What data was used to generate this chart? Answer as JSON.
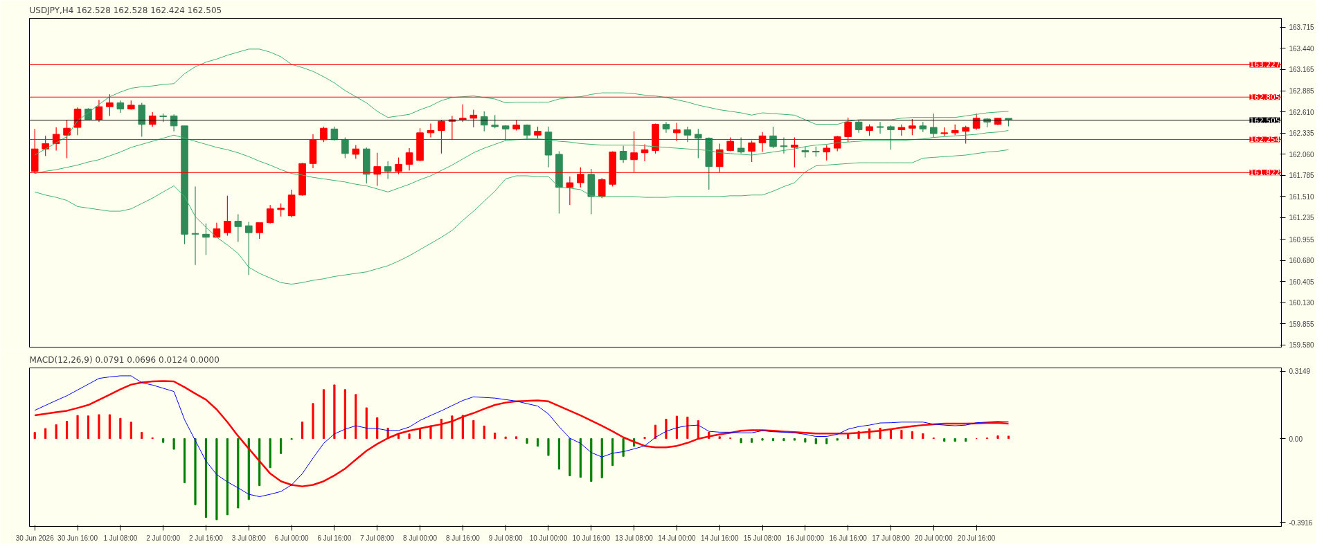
{
  "chart_data": [
    {
      "type": "candlestick",
      "title": "USDJPY,H4  162.528 162.528 162.424 162.505",
      "categories": [
        null,
        null,
        null,
        null,
        null,
        null,
        null,
        null,
        null,
        null,
        null,
        null,
        null,
        null,
        null,
        null,
        null,
        null,
        null,
        null,
        null,
        null,
        null,
        null,
        null,
        null,
        null,
        null,
        null,
        null,
        null,
        null,
        null,
        null,
        null,
        null,
        null,
        null,
        null,
        null,
        null,
        null,
        null,
        null,
        null,
        null,
        null,
        null,
        null,
        null,
        null,
        null,
        null,
        null,
        null,
        null,
        null,
        null,
        null,
        null,
        null,
        null,
        null,
        null,
        null,
        null,
        null,
        null,
        null,
        null,
        null,
        null,
        null,
        null,
        null,
        null,
        null,
        null,
        null,
        null,
        null,
        null,
        null,
        null,
        null,
        null,
        null,
        null,
        null,
        null,
        null,
        null,
        null,
        null,
        null,
        null,
        null,
        null,
        null,
        null,
        null,
        null,
        null,
        null,
        null,
        null,
        null,
        null,
        null,
        null,
        null,
        null,
        null,
        null,
        null,
        null,
        null
      ],
      "ohlc": [
        [
          161.84,
          162.39,
          161.81,
          162.13
        ],
        [
          162.13,
          162.3,
          162.04,
          162.2
        ],
        [
          162.2,
          162.41,
          162.11,
          162.32
        ],
        [
          162.31,
          162.51,
          162.01,
          162.4
        ],
        [
          162.41,
          162.67,
          162.31,
          162.65
        ],
        [
          162.65,
          162.66,
          162.51,
          162.51
        ],
        [
          162.51,
          162.77,
          162.48,
          162.68
        ],
        [
          162.68,
          162.84,
          162.56,
          162.73
        ],
        [
          162.73,
          162.76,
          162.6,
          162.65
        ],
        [
          162.65,
          162.76,
          162.64,
          162.7
        ],
        [
          162.7,
          162.73,
          162.29,
          162.45
        ],
        [
          162.45,
          162.61,
          162.42,
          162.56
        ],
        [
          162.56,
          162.59,
          162.48,
          162.55
        ],
        [
          162.56,
          162.58,
          162.36,
          162.43
        ],
        [
          162.43,
          162.43,
          160.89,
          161.02
        ],
        [
          161.03,
          161.64,
          160.62,
          161.02
        ],
        [
          161.02,
          161.16,
          160.75,
          160.98
        ],
        [
          160.98,
          161.17,
          160.98,
          161.09
        ],
        [
          161.04,
          161.52,
          161.0,
          161.19
        ],
        [
          161.19,
          161.28,
          160.92,
          161.12
        ],
        [
          161.13,
          161.18,
          160.49,
          161.04
        ],
        [
          161.04,
          161.17,
          160.96,
          161.17
        ],
        [
          161.17,
          161.4,
          161.16,
          161.35
        ],
        [
          161.34,
          161.42,
          161.25,
          161.36
        ],
        [
          161.26,
          161.6,
          161.24,
          161.53
        ],
        [
          161.53,
          161.95,
          161.52,
          161.94
        ],
        [
          161.94,
          162.32,
          161.88,
          162.25
        ],
        [
          162.25,
          162.42,
          162.22,
          162.4
        ],
        [
          162.39,
          162.42,
          162.24,
          162.25
        ],
        [
          162.25,
          162.28,
          162.01,
          162.07
        ],
        [
          162.06,
          162.18,
          162.0,
          162.13
        ],
        [
          162.13,
          162.15,
          161.68,
          161.8
        ],
        [
          161.8,
          162.08,
          161.65,
          161.9
        ],
        [
          161.9,
          161.97,
          161.74,
          161.84
        ],
        [
          161.84,
          162.02,
          161.8,
          161.93
        ],
        [
          161.93,
          162.14,
          161.85,
          162.08
        ],
        [
          161.98,
          162.4,
          161.97,
          162.34
        ],
        [
          162.34,
          162.46,
          162.28,
          162.37
        ],
        [
          162.37,
          162.5,
          162.07,
          162.49
        ],
        [
          162.49,
          162.56,
          162.25,
          162.51
        ],
        [
          162.51,
          162.71,
          162.48,
          162.53
        ],
        [
          162.53,
          162.64,
          162.41,
          162.57
        ],
        [
          162.55,
          162.62,
          162.36,
          162.44
        ],
        [
          162.44,
          162.57,
          162.4,
          162.42
        ],
        [
          162.43,
          162.44,
          162.24,
          162.39
        ],
        [
          162.39,
          162.51,
          162.37,
          162.44
        ],
        [
          162.44,
          162.45,
          162.26,
          162.31
        ],
        [
          162.31,
          162.42,
          162.27,
          162.36
        ],
        [
          162.35,
          162.42,
          161.89,
          162.05
        ],
        [
          162.06,
          162.1,
          161.29,
          161.63
        ],
        [
          161.63,
          161.77,
          161.4,
          161.69
        ],
        [
          161.69,
          161.89,
          161.63,
          161.8
        ],
        [
          161.8,
          161.87,
          161.28,
          161.51
        ],
        [
          161.51,
          161.75,
          161.49,
          161.73
        ],
        [
          161.67,
          162.1,
          161.64,
          162.09
        ],
        [
          162.1,
          162.17,
          161.95,
          161.99
        ],
        [
          161.99,
          162.36,
          161.83,
          162.08
        ],
        [
          162.08,
          162.19,
          161.97,
          162.12
        ],
        [
          162.11,
          162.46,
          162.07,
          162.45
        ],
        [
          162.45,
          162.48,
          162.34,
          162.39
        ],
        [
          162.34,
          162.47,
          162.23,
          162.38
        ],
        [
          162.38,
          162.42,
          162.22,
          162.31
        ],
        [
          162.32,
          162.39,
          162.01,
          162.27
        ],
        [
          162.27,
          162.28,
          161.6,
          161.9
        ],
        [
          161.9,
          162.2,
          161.83,
          162.12
        ],
        [
          162.11,
          162.28,
          162.1,
          162.23
        ],
        [
          162.14,
          162.28,
          162.07,
          162.09
        ],
        [
          162.1,
          162.24,
          161.96,
          162.21
        ],
        [
          162.21,
          162.35,
          162.09,
          162.3
        ],
        [
          162.3,
          162.42,
          162.14,
          162.16
        ],
        [
          162.17,
          162.28,
          162.07,
          162.16
        ],
        [
          162.15,
          162.28,
          161.89,
          162.18
        ],
        [
          162.11,
          162.16,
          162.02,
          162.09
        ],
        [
          162.1,
          162.16,
          162.03,
          162.09
        ],
        [
          162.09,
          162.18,
          161.98,
          162.14
        ],
        [
          162.14,
          162.3,
          162.1,
          162.29
        ],
        [
          162.29,
          162.54,
          162.22,
          162.48
        ],
        [
          162.48,
          162.51,
          162.34,
          162.38
        ],
        [
          162.37,
          162.45,
          162.3,
          162.42
        ],
        [
          162.42,
          162.48,
          162.33,
          162.41
        ],
        [
          162.42,
          162.44,
          162.12,
          162.38
        ],
        [
          162.38,
          162.45,
          162.3,
          162.41
        ],
        [
          162.4,
          162.52,
          162.31,
          162.43
        ],
        [
          162.43,
          162.48,
          162.35,
          162.39
        ],
        [
          162.41,
          162.59,
          162.28,
          162.33
        ],
        [
          162.33,
          162.41,
          162.3,
          162.34
        ],
        [
          162.34,
          162.45,
          162.31,
          162.37
        ],
        [
          162.36,
          162.43,
          162.2,
          162.41
        ],
        [
          162.4,
          162.59,
          162.38,
          162.53
        ],
        [
          162.52,
          162.53,
          162.41,
          162.48
        ],
        [
          162.45,
          162.53,
          162.44,
          162.53
        ],
        [
          162.528,
          162.528,
          162.424,
          162.505
        ],
        null,
        null,
        null,
        null,
        null,
        null,
        null,
        null,
        null,
        null,
        null,
        null,
        null,
        null,
        null,
        null,
        null,
        null,
        null,
        null,
        null,
        null,
        null,
        null,
        null
      ],
      "colors": [
        "#ff0000",
        "#ff0000",
        "#ff0000",
        "#ff0000",
        "#ff0000",
        "#2e8b57",
        "#ff0000",
        "#ff0000",
        "#2e8b57",
        "#ff0000",
        "#2e8b57",
        "#ff0000",
        "#2e8b57",
        "#2e8b57",
        "#2e8b57",
        "#2e8b57",
        "#2e8b57",
        "#ff0000",
        "#ff0000",
        "#2e8b57",
        "#2e8b57",
        "#ff0000",
        "#ff0000",
        "#ff0000",
        "#ff0000",
        "#ff0000",
        "#ff0000",
        "#ff0000",
        "#2e8b57",
        "#2e8b57",
        "#ff0000",
        "#2e8b57",
        "#ff0000",
        "#2e8b57",
        "#ff0000",
        "#ff0000",
        "#ff0000",
        "#ff0000",
        "#ff0000",
        "#ff0000",
        "#ff0000",
        "#ff0000",
        "#2e8b57",
        "#2e8b57",
        "#2e8b57",
        "#ff0000",
        "#2e8b57",
        "#ff0000",
        "#2e8b57",
        "#2e8b57",
        "#ff0000",
        "#ff0000",
        "#2e8b57",
        "#ff0000",
        "#ff0000",
        "#2e8b57",
        "#ff0000",
        "#ff0000",
        "#ff0000",
        "#2e8b57",
        "#ff0000",
        "#2e8b57",
        "#2e8b57",
        "#2e8b57",
        "#ff0000",
        "#ff0000",
        "#2e8b57",
        "#ff0000",
        "#ff0000",
        "#2e8b57",
        "#2e8b57",
        "#ff0000",
        "#2e8b57",
        "#2e8b57",
        "#ff0000",
        "#ff0000",
        "#ff0000",
        "#2e8b57",
        "#ff0000",
        "#2e8b57",
        "#2e8b57",
        "#ff0000",
        "#ff0000",
        "#2e8b57",
        "#2e8b57",
        "#ff0000",
        "#ff0000",
        "#ff0000",
        "#ff0000",
        "#2e8b57",
        "#ff0000",
        "#2e8b57",
        null,
        null,
        null,
        null,
        null,
        null,
        null,
        null,
        null,
        null,
        null,
        null,
        null,
        null,
        null,
        null,
        null,
        null,
        null,
        null,
        null,
        null,
        null,
        null,
        null
      ],
      "series": [
        {
          "type": "line",
          "color": "#3cb371",
          "values": [
            162.05,
            162.13,
            162.21,
            162.29,
            162.5,
            162.6,
            162.71,
            162.81,
            162.87,
            162.92,
            162.94,
            162.95,
            162.97,
            162.98,
            163.11,
            163.2,
            163.26,
            163.3,
            163.35,
            163.39,
            163.43,
            163.43,
            163.39,
            163.33,
            163.23,
            163.19,
            163.14,
            163.07,
            162.99,
            162.89,
            162.81,
            162.73,
            162.62,
            162.54,
            162.56,
            162.58,
            162.64,
            162.69,
            162.76,
            162.8,
            162.81,
            162.82,
            162.8,
            162.78,
            162.73,
            162.74,
            162.74,
            162.74,
            162.74,
            162.78,
            162.8,
            162.81,
            162.84,
            162.86,
            162.86,
            162.86,
            162.85,
            162.83,
            162.82,
            162.8,
            162.77,
            162.74,
            162.7,
            162.67,
            162.64,
            162.62,
            162.6,
            162.57,
            162.6,
            162.59,
            162.58,
            162.57,
            162.51,
            162.45,
            162.45,
            162.45,
            162.49,
            162.51,
            162.51,
            162.51,
            162.51,
            162.53,
            162.54,
            162.54,
            162.54,
            162.54,
            162.54,
            162.56,
            162.58,
            162.6,
            162.61,
            162.62,
            null,
            null,
            null,
            null,
            null,
            null,
            null,
            null,
            null,
            null,
            null,
            null,
            null,
            null,
            null,
            null,
            null,
            null,
            null,
            null,
            null,
            null,
            null,
            null,
            null
          ]
        },
        {
          "type": "line",
          "color": "#3cb371",
          "values": [
            161.81,
            161.84,
            161.86,
            161.89,
            161.92,
            161.96,
            161.99,
            162.04,
            162.09,
            162.15,
            162.19,
            162.23,
            162.27,
            162.31,
            162.27,
            162.23,
            162.19,
            162.15,
            162.12,
            162.08,
            162.03,
            161.97,
            161.92,
            161.86,
            161.81,
            161.79,
            161.76,
            161.74,
            161.72,
            161.7,
            161.67,
            161.65,
            161.61,
            161.57,
            161.62,
            161.67,
            161.73,
            161.78,
            161.85,
            161.92,
            162.0,
            162.08,
            162.14,
            162.19,
            162.24,
            162.25,
            162.26,
            162.26,
            162.25,
            162.23,
            162.22,
            162.2,
            162.19,
            162.18,
            162.18,
            162.18,
            162.18,
            162.17,
            162.16,
            162.15,
            162.14,
            162.13,
            162.12,
            162.11,
            162.08,
            162.07,
            162.06,
            162.05,
            162.07,
            162.09,
            162.11,
            162.13,
            162.16,
            162.18,
            162.19,
            162.21,
            162.22,
            162.23,
            162.24,
            162.24,
            162.24,
            162.24,
            162.25,
            162.26,
            162.28,
            162.29,
            162.3,
            162.31,
            162.32,
            162.34,
            162.35,
            162.37,
            null,
            null,
            null,
            null,
            null,
            null,
            null,
            null,
            null,
            null,
            null,
            null,
            null,
            null,
            null,
            null,
            null,
            null,
            null,
            null,
            null,
            null,
            null,
            null,
            null
          ]
        },
        {
          "type": "line",
          "color": "#3cb371",
          "values": [
            161.57,
            161.53,
            161.5,
            161.46,
            161.38,
            161.36,
            161.34,
            161.32,
            161.32,
            161.35,
            161.42,
            161.49,
            161.57,
            161.65,
            161.51,
            161.25,
            161.11,
            160.98,
            160.88,
            160.77,
            160.59,
            160.51,
            160.45,
            160.39,
            160.37,
            160.39,
            160.42,
            160.44,
            160.47,
            160.49,
            160.51,
            160.53,
            160.57,
            160.61,
            160.67,
            160.74,
            160.82,
            160.9,
            160.98,
            161.07,
            161.2,
            161.32,
            161.45,
            161.58,
            161.74,
            161.78,
            161.78,
            161.77,
            161.77,
            161.63,
            161.62,
            161.6,
            161.52,
            161.51,
            161.51,
            161.51,
            161.51,
            161.5,
            161.5,
            161.5,
            161.51,
            161.51,
            161.51,
            161.51,
            161.51,
            161.52,
            161.52,
            161.53,
            161.53,
            161.58,
            161.64,
            161.69,
            161.83,
            161.91,
            161.92,
            161.93,
            161.94,
            161.95,
            161.95,
            161.95,
            161.95,
            161.95,
            161.95,
            162.01,
            162.02,
            162.03,
            162.04,
            162.05,
            162.07,
            162.09,
            162.1,
            162.12,
            null,
            null,
            null,
            null,
            null,
            null,
            null,
            null,
            null,
            null,
            null,
            null,
            null,
            null,
            null,
            null,
            null,
            null,
            null,
            null,
            null,
            null,
            null,
            null,
            null
          ]
        }
      ],
      "ref_lines": [
        {
          "axis": "y",
          "value": 163.227,
          "label": "163.227",
          "color": "#ff0000"
        },
        {
          "axis": "y",
          "value": 162.805,
          "label": "162.805",
          "color": "#ff0000"
        },
        {
          "axis": "y",
          "value": 162.505,
          "label": "162.505",
          "color": "#000000"
        },
        {
          "axis": "y",
          "value": 162.254,
          "label": "162.254",
          "color": "#ff0000"
        },
        {
          "axis": "y",
          "value": 161.822,
          "label": "161.822",
          "color": "#ff0000"
        }
      ],
      "ylim": [
        159.55,
        163.83
      ],
      "yticks": [
        163.715,
        {
          "value": 163.44,
          "label": "163.440"
        },
        163.165,
        162.885,
        {
          "value": 162.61,
          "label": "162.610"
        },
        162.335,
        {
          "value": 162.06,
          "label": "162.060"
        },
        161.785,
        {
          "value": 161.51,
          "label": "161.510"
        },
        161.235,
        160.955,
        {
          "value": 160.68,
          "label": "160.680"
        },
        160.405,
        {
          "value": 160.13,
          "label": "160.130"
        },
        159.855,
        {
          "value": 159.58,
          "label": "159.580"
        }
      ],
      "tick_labels": "y",
      "grid": false
    },
    {
      "type": "bar",
      "title": "MACD(12,26,9) 0.0791 0.0696 0.0124 0.0000",
      "categories": [
        "30 Jun 2026",
        null,
        null,
        null,
        "30 Jun 16:00",
        null,
        null,
        null,
        "1 Jul 08:00",
        null,
        null,
        null,
        "2 Jul 00:00",
        null,
        null,
        null,
        "2 Jul 16:00",
        null,
        null,
        null,
        "3 Jul 08:00",
        null,
        null,
        null,
        "6 Jul 00:00",
        null,
        null,
        null,
        "6 Jul 16:00",
        null,
        null,
        null,
        "7 Jul 08:00",
        null,
        null,
        null,
        "8 Jul 00:00",
        null,
        null,
        null,
        "8 Jul 16:00",
        null,
        null,
        null,
        "9 Jul 08:00",
        null,
        null,
        null,
        "10 Jul 00:00",
        null,
        null,
        null,
        "10 Jul 16:00",
        null,
        null,
        null,
        "13 Jul 08:00",
        null,
        null,
        null,
        "14 Jul 00:00",
        null,
        null,
        null,
        "14 Jul 16:00",
        null,
        null,
        null,
        "15 Jul 08:00",
        null,
        null,
        null,
        "16 Jul 00:00",
        null,
        null,
        null,
        "16 Jul 16:00",
        null,
        null,
        null,
        "17 Jul 08:00",
        null,
        null,
        null,
        "20 Jul 00:00",
        null,
        null,
        null,
        "20 Jul 16:00",
        null,
        null,
        null,
        null,
        null,
        null,
        null,
        null,
        null,
        null,
        null,
        null,
        null,
        null,
        null,
        null,
        null,
        null,
        null,
        null,
        null,
        null,
        null,
        null,
        null,
        null,
        null,
        null
      ],
      "series": [
        {
          "type": "bar",
          "values": [
            0.029,
            0.047,
            0.065,
            0.081,
            0.108,
            0.106,
            0.112,
            0.112,
            0.095,
            0.077,
            0.029,
            0.004,
            -0.018,
            -0.05,
            -0.206,
            -0.309,
            -0.368,
            -0.379,
            -0.356,
            -0.324,
            -0.285,
            -0.22,
            -0.136,
            -0.07,
            -0.004,
            0.078,
            0.164,
            0.229,
            0.251,
            0.229,
            0.206,
            0.144,
            0.098,
            0.049,
            0.019,
            0.022,
            0.049,
            0.06,
            0.091,
            0.106,
            0.109,
            0.085,
            0.059,
            0.026,
            0.008,
            0.009,
            -0.022,
            -0.036,
            -0.079,
            -0.143,
            -0.174,
            -0.181,
            -0.2,
            -0.183,
            -0.126,
            -0.083,
            -0.036,
            0.006,
            0.063,
            0.091,
            0.105,
            0.101,
            0.084,
            0.03,
            0.009,
            0.003,
            -0.02,
            -0.018,
            -0.008,
            -0.01,
            -0.01,
            -0.008,
            -0.017,
            -0.024,
            -0.024,
            -0.008,
            0.024,
            0.034,
            0.046,
            0.049,
            0.041,
            0.039,
            0.033,
            0.023,
            0.003,
            -0.013,
            -0.013,
            -0.013,
            0.0,
            0.003,
            0.013,
            0.012,
            null,
            null,
            null,
            null,
            null,
            null,
            null,
            null,
            null,
            null,
            null,
            null,
            null,
            null,
            null,
            null,
            null,
            null,
            null,
            null,
            null,
            null,
            null,
            null,
            null
          ],
          "colors": [
            "#ff0000",
            "#ff0000",
            "#ff0000",
            "#ff0000",
            "#ff0000",
            "#ff0000",
            "#ff0000",
            "#ff0000",
            "#ff0000",
            "#ff0000",
            "#ff0000",
            "#ff0000",
            "#008000",
            "#008000",
            "#008000",
            "#008000",
            "#008000",
            "#008000",
            "#008000",
            "#008000",
            "#008000",
            "#008000",
            "#008000",
            "#008000",
            "#008000",
            "#ff0000",
            "#ff0000",
            "#ff0000",
            "#ff0000",
            "#ff0000",
            "#ff0000",
            "#ff0000",
            "#ff0000",
            "#ff0000",
            "#ff0000",
            "#ff0000",
            "#ff0000",
            "#ff0000",
            "#ff0000",
            "#ff0000",
            "#ff0000",
            "#ff0000",
            "#ff0000",
            "#ff0000",
            "#ff0000",
            "#ff0000",
            "#008000",
            "#008000",
            "#008000",
            "#008000",
            "#008000",
            "#008000",
            "#008000",
            "#008000",
            "#008000",
            "#008000",
            "#008000",
            "#ff0000",
            "#ff0000",
            "#ff0000",
            "#ff0000",
            "#ff0000",
            "#ff0000",
            "#ff0000",
            "#ff0000",
            "#ff0000",
            "#008000",
            "#008000",
            "#008000",
            "#008000",
            "#008000",
            "#008000",
            "#008000",
            "#008000",
            "#008000",
            "#008000",
            "#ff0000",
            "#ff0000",
            "#ff0000",
            "#ff0000",
            "#ff0000",
            "#ff0000",
            "#ff0000",
            "#ff0000",
            "#ff0000",
            "#008000",
            "#008000",
            "#008000",
            "#ff0000",
            "#ff0000",
            "#ff0000",
            "#ff0000",
            null,
            null,
            null,
            null,
            null,
            null,
            null,
            null,
            null,
            null,
            null,
            null,
            null,
            null,
            null,
            null,
            null,
            null,
            null,
            null,
            null,
            null,
            null,
            null,
            null
          ]
        },
        {
          "type": "line",
          "color": "#0000ff",
          "values": [
            0.132,
            0.155,
            0.178,
            0.2,
            0.227,
            0.254,
            0.281,
            0.288,
            0.293,
            0.293,
            0.261,
            0.25,
            0.235,
            0.22,
            0.088,
            -0.009,
            -0.105,
            -0.168,
            -0.202,
            -0.23,
            -0.26,
            -0.271,
            -0.26,
            -0.247,
            -0.216,
            -0.164,
            -0.091,
            -0.022,
            0.022,
            0.044,
            0.06,
            0.049,
            0.047,
            0.038,
            0.038,
            0.054,
            0.085,
            0.108,
            0.13,
            0.154,
            0.178,
            0.195,
            0.192,
            0.189,
            0.182,
            0.175,
            0.163,
            0.152,
            0.115,
            0.056,
            0.002,
            -0.022,
            -0.065,
            -0.086,
            -0.068,
            -0.061,
            -0.048,
            -0.034,
            0.006,
            0.034,
            0.051,
            0.06,
            0.063,
            0.034,
            0.03,
            0.03,
            0.027,
            0.027,
            0.037,
            0.032,
            0.03,
            0.027,
            0.02,
            0.01,
            0.01,
            0.02,
            0.044,
            0.056,
            0.063,
            0.073,
            0.074,
            0.077,
            0.077,
            0.077,
            0.067,
            0.063,
            0.06,
            0.063,
            0.074,
            0.077,
            0.081,
            0.079,
            null,
            null,
            null,
            null,
            null,
            null,
            null,
            null,
            null,
            null,
            null,
            null,
            null,
            null,
            null,
            null,
            null,
            null,
            null,
            null,
            null,
            null,
            null,
            null,
            null
          ]
        },
        {
          "type": "line",
          "color": "#ff0000",
          "values": [
            0.109,
            0.116,
            0.123,
            0.13,
            0.143,
            0.157,
            0.181,
            0.205,
            0.23,
            0.252,
            0.262,
            0.267,
            0.269,
            0.267,
            0.24,
            0.21,
            0.182,
            0.136,
            0.077,
            0.012,
            -0.047,
            -0.105,
            -0.163,
            -0.199,
            -0.216,
            -0.223,
            -0.216,
            -0.199,
            -0.172,
            -0.14,
            -0.098,
            -0.057,
            -0.025,
            0.002,
            0.023,
            0.037,
            0.047,
            0.058,
            0.067,
            0.081,
            0.102,
            0.119,
            0.139,
            0.157,
            0.168,
            0.174,
            0.176,
            0.178,
            0.174,
            0.152,
            0.13,
            0.108,
            0.084,
            0.06,
            0.034,
            0.006,
            -0.015,
            -0.034,
            -0.041,
            -0.041,
            -0.034,
            -0.02,
            -0.001,
            0.01,
            0.02,
            0.027,
            0.037,
            0.039,
            0.039,
            0.037,
            0.033,
            0.03,
            0.027,
            0.024,
            0.024,
            0.024,
            0.024,
            0.027,
            0.032,
            0.037,
            0.044,
            0.051,
            0.058,
            0.063,
            0.067,
            0.07,
            0.07,
            0.07,
            0.071,
            0.073,
            0.074,
            0.07,
            null,
            null,
            null,
            null,
            null,
            null,
            null,
            null,
            null,
            null,
            null,
            null,
            null,
            null,
            null,
            null,
            null,
            null,
            null,
            null,
            null,
            null,
            null,
            null,
            null
          ]
        }
      ],
      "ylim": [
        -0.41,
        0.33
      ],
      "yticks": [
        0.3149,
        {
          "value": 0,
          "label": "0.00"
        },
        -0.3916
      ],
      "grid": false
    }
  ]
}
